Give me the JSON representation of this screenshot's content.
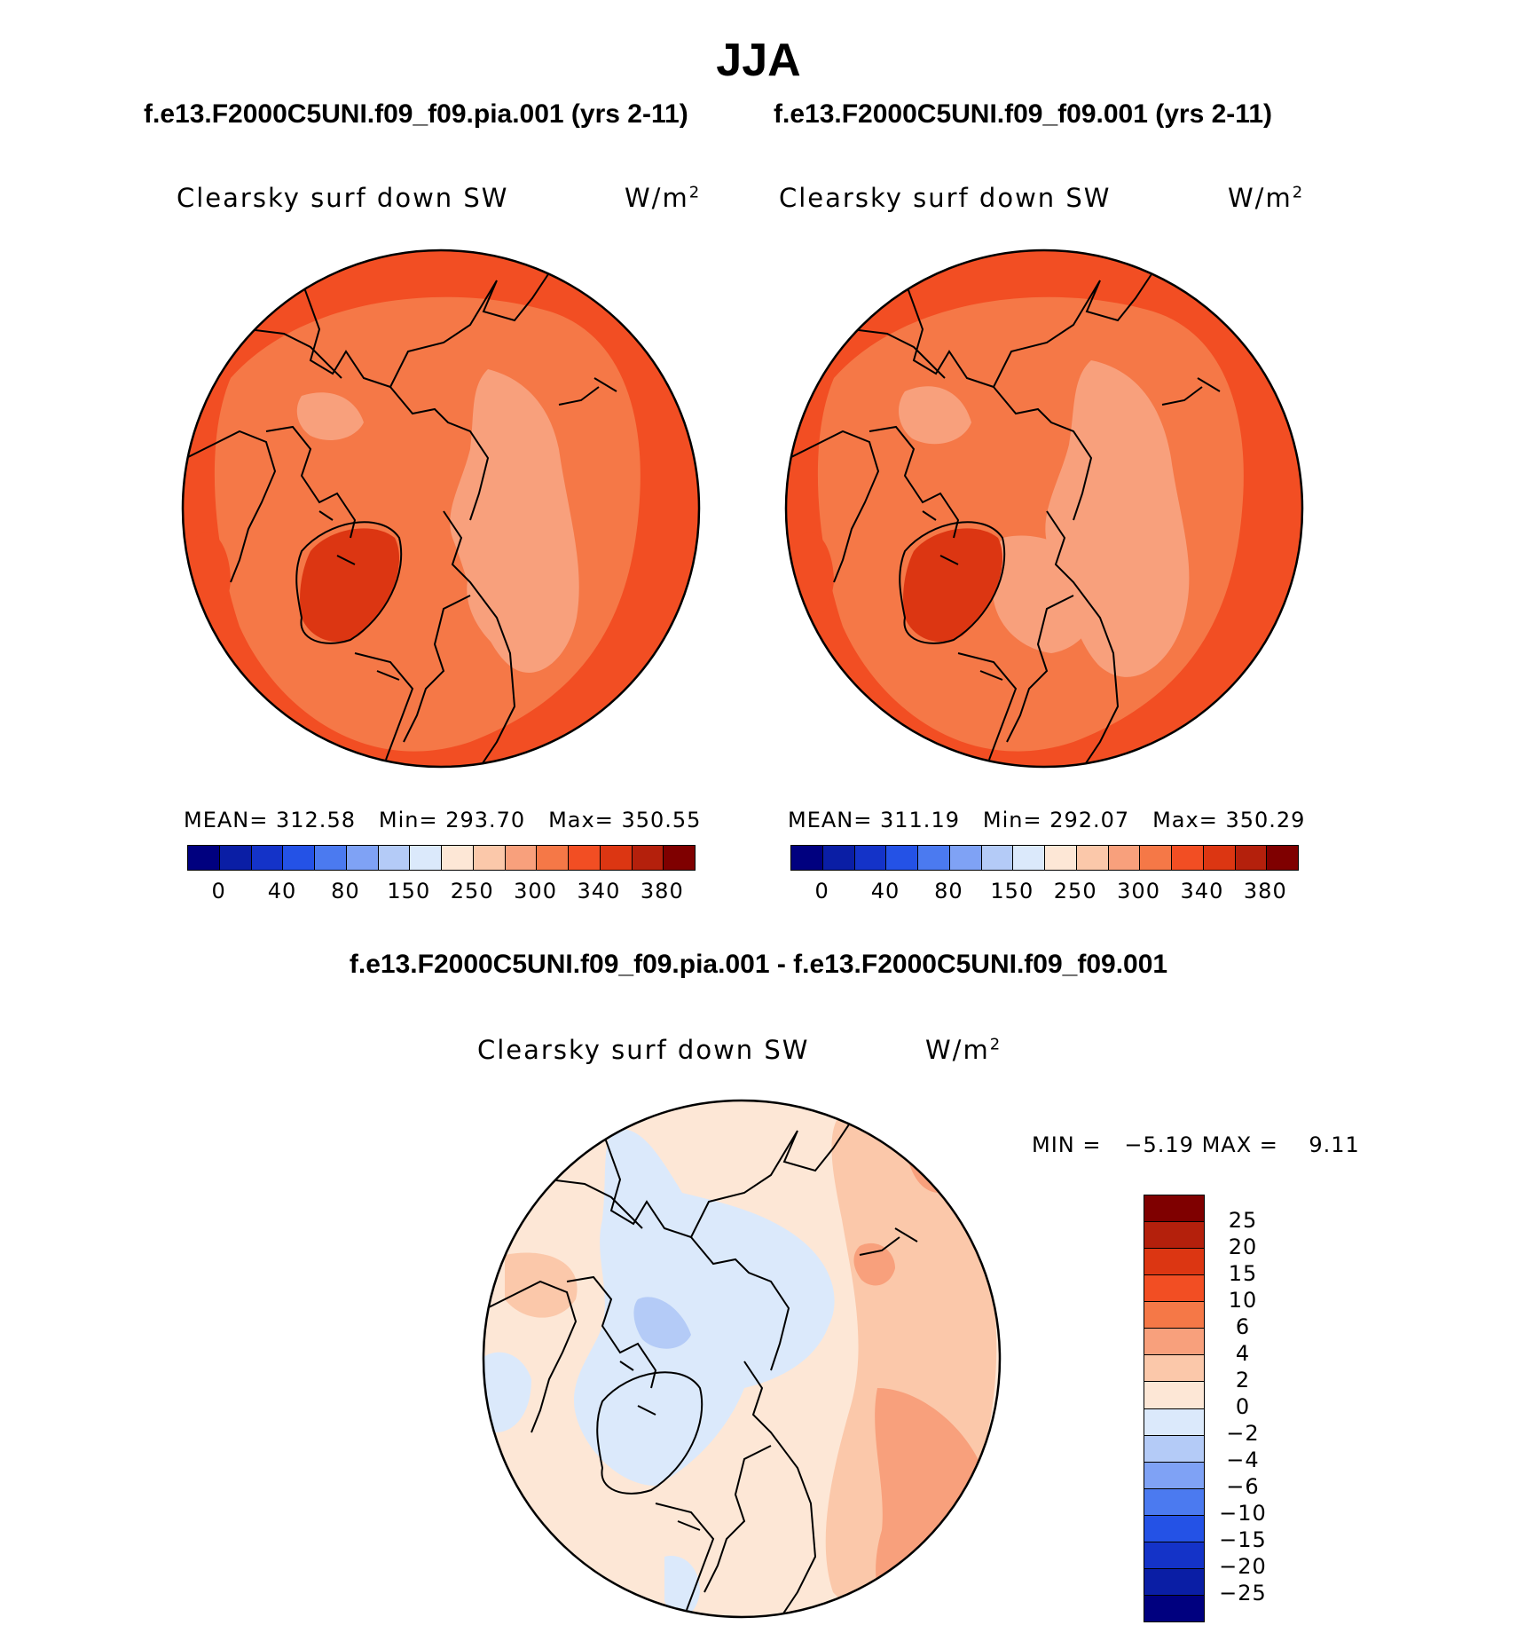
{
  "season": "JJA",
  "panels": [
    {
      "case_title": "f.e13.F2000C5UNI.f09_f09.pia.001 (yrs 2-11)",
      "variable": "Clearsky surf down SW",
      "units_base": "W/m",
      "units_exp": "2",
      "mean_label": "MEAN=",
      "mean": "312.58",
      "min_label": "Min=",
      "min": "293.70",
      "max_label": "Max=",
      "max": "350.55"
    },
    {
      "case_title": "f.e13.F2000C5UNI.f09_f09.001 (yrs 2-11)",
      "variable": "Clearsky surf down SW",
      "units_base": "W/m",
      "units_exp": "2",
      "mean_label": "MEAN=",
      "mean": "311.19",
      "min_label": "Min=",
      "min": "292.07",
      "max_label": "Max=",
      "max": "350.29"
    }
  ],
  "colorbar_abs": {
    "colors": [
      "#00007f",
      "#0a1ea5",
      "#1433c8",
      "#2452e6",
      "#4b7af0",
      "#7fa2f5",
      "#b4cbf7",
      "#dbe9fb",
      "#fde7d6",
      "#fbc8aa",
      "#f8a07c",
      "#f57847",
      "#f24e23",
      "#dc3612",
      "#b4200c",
      "#7f0000"
    ],
    "ticks": [
      "0",
      "40",
      "80",
      "150",
      "250",
      "300",
      "340",
      "380"
    ]
  },
  "diff": {
    "title": "f.e13.F2000C5UNI.f09_f09.pia.001 - f.e13.F2000C5UNI.f09_f09.001",
    "variable": "Clearsky surf down SW",
    "units_base": "W/m",
    "units_exp": "2",
    "min_label": "MIN =",
    "min": "−5.19",
    "max_label": "MAX =",
    "max": "9.11",
    "colorbar": {
      "colors_top_to_bottom": [
        "#7f0000",
        "#b4200c",
        "#dc3612",
        "#f24e23",
        "#f57847",
        "#f8a07c",
        "#fbc8aa",
        "#fde7d6",
        "#dbe9fb",
        "#b4cbf7",
        "#7fa2f5",
        "#4b7af0",
        "#2452e6",
        "#1433c8",
        "#0a1ea5",
        "#00007f"
      ],
      "ticks": [
        "25",
        "20",
        "15",
        "10",
        "6",
        "4",
        "2",
        "0",
        "−2",
        "−4",
        "−6",
        "−10",
        "−15",
        "−20",
        "−25"
      ]
    }
  },
  "map_colors": {
    "abs_base": "#f57847",
    "abs_high": "#f24e23",
    "abs_higher": "#dc3612",
    "abs_low": "#f8a07c",
    "abs_lowest": "#fbc8aa",
    "diff_base": "#fde7d6",
    "diff_pos": "#fbc8aa",
    "diff_pos2": "#f8a07c",
    "diff_neg": "#dbe9fb",
    "diff_neg2": "#b4cbf7"
  }
}
